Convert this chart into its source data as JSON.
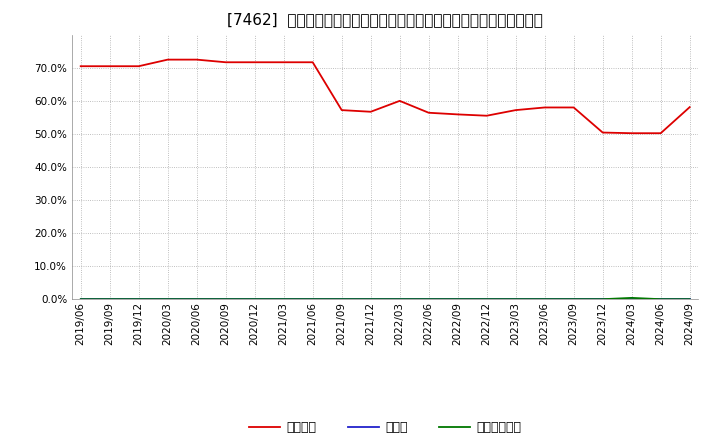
{
  "title": "[7462]  自己資本、のれん、繰延税金資産の総資産に対する比率の推移",
  "background_color": "#ffffff",
  "plot_bg_color": "#ffffff",
  "grid_color": "#aaaaaa",
  "ylim": [
    0.0,
    0.8
  ],
  "yticks": [
    0.0,
    0.1,
    0.2,
    0.3,
    0.4,
    0.5,
    0.6,
    0.7
  ],
  "x_labels": [
    "2019/06",
    "2019/09",
    "2019/12",
    "2020/03",
    "2020/06",
    "2020/09",
    "2020/12",
    "2021/03",
    "2021/06",
    "2021/09",
    "2021/12",
    "2022/03",
    "2022/06",
    "2022/09",
    "2022/12",
    "2023/03",
    "2023/06",
    "2023/09",
    "2023/12",
    "2024/03",
    "2024/06",
    "2024/09"
  ],
  "jikoshihon": [
    0.706,
    0.706,
    0.706,
    0.726,
    0.726,
    0.718,
    0.718,
    0.718,
    0.718,
    0.573,
    0.568,
    0.601,
    0.565,
    0.56,
    0.556,
    0.573,
    0.581,
    0.581,
    0.505,
    0.503,
    0.503,
    0.582
  ],
  "noren": [
    0.0,
    0.0,
    0.0,
    0.0,
    0.0,
    0.0,
    0.0,
    0.0,
    0.0,
    0.0,
    0.0,
    0.0,
    0.0,
    0.0,
    0.0,
    0.0,
    0.0,
    0.0,
    0.0,
    0.0,
    0.0,
    0.0
  ],
  "kurinobe": [
    0.0,
    0.0,
    0.0,
    0.0,
    0.0,
    0.0,
    0.0,
    0.0,
    0.0,
    0.0,
    0.0,
    0.0,
    0.0,
    0.0,
    0.0,
    0.0,
    0.0,
    0.0,
    0.0,
    0.004,
    0.0,
    0.0
  ],
  "jikoshihon_color": "#dd0000",
  "noren_color": "#2222cc",
  "kurinobe_color": "#007700",
  "legend_labels": [
    "自己資本",
    "のれん",
    "繰延税金資産"
  ],
  "title_fontsize": 11,
  "tick_fontsize": 7.5,
  "legend_fontsize": 9
}
